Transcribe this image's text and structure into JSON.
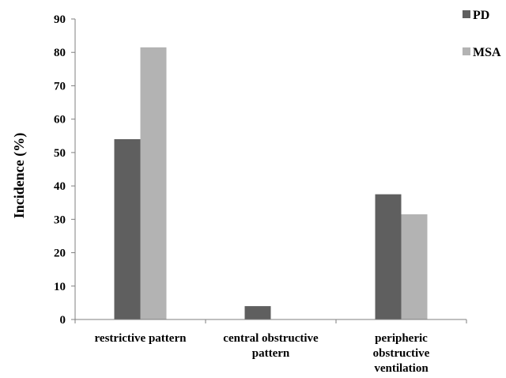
{
  "chart_data": {
    "type": "bar",
    "ylabel": "Incidence (%)",
    "xlabel": "",
    "ylim": [
      0,
      90
    ],
    "yticks": [
      0,
      10,
      20,
      30,
      40,
      50,
      60,
      70,
      80,
      90
    ],
    "categories": [
      [
        "restrictive pattern"
      ],
      [
        "central obstructive",
        "pattern"
      ],
      [
        "peripheric",
        "obstructive",
        "ventilation"
      ]
    ],
    "series": [
      {
        "name": "PD",
        "color": "#5f5f5f",
        "values": [
          54,
          4,
          37.5
        ]
      },
      {
        "name": "MSA",
        "color": "#b3b3b3",
        "values": [
          81.5,
          0,
          31.5
        ]
      }
    ],
    "legend_position": "top-right",
    "grid": false
  }
}
